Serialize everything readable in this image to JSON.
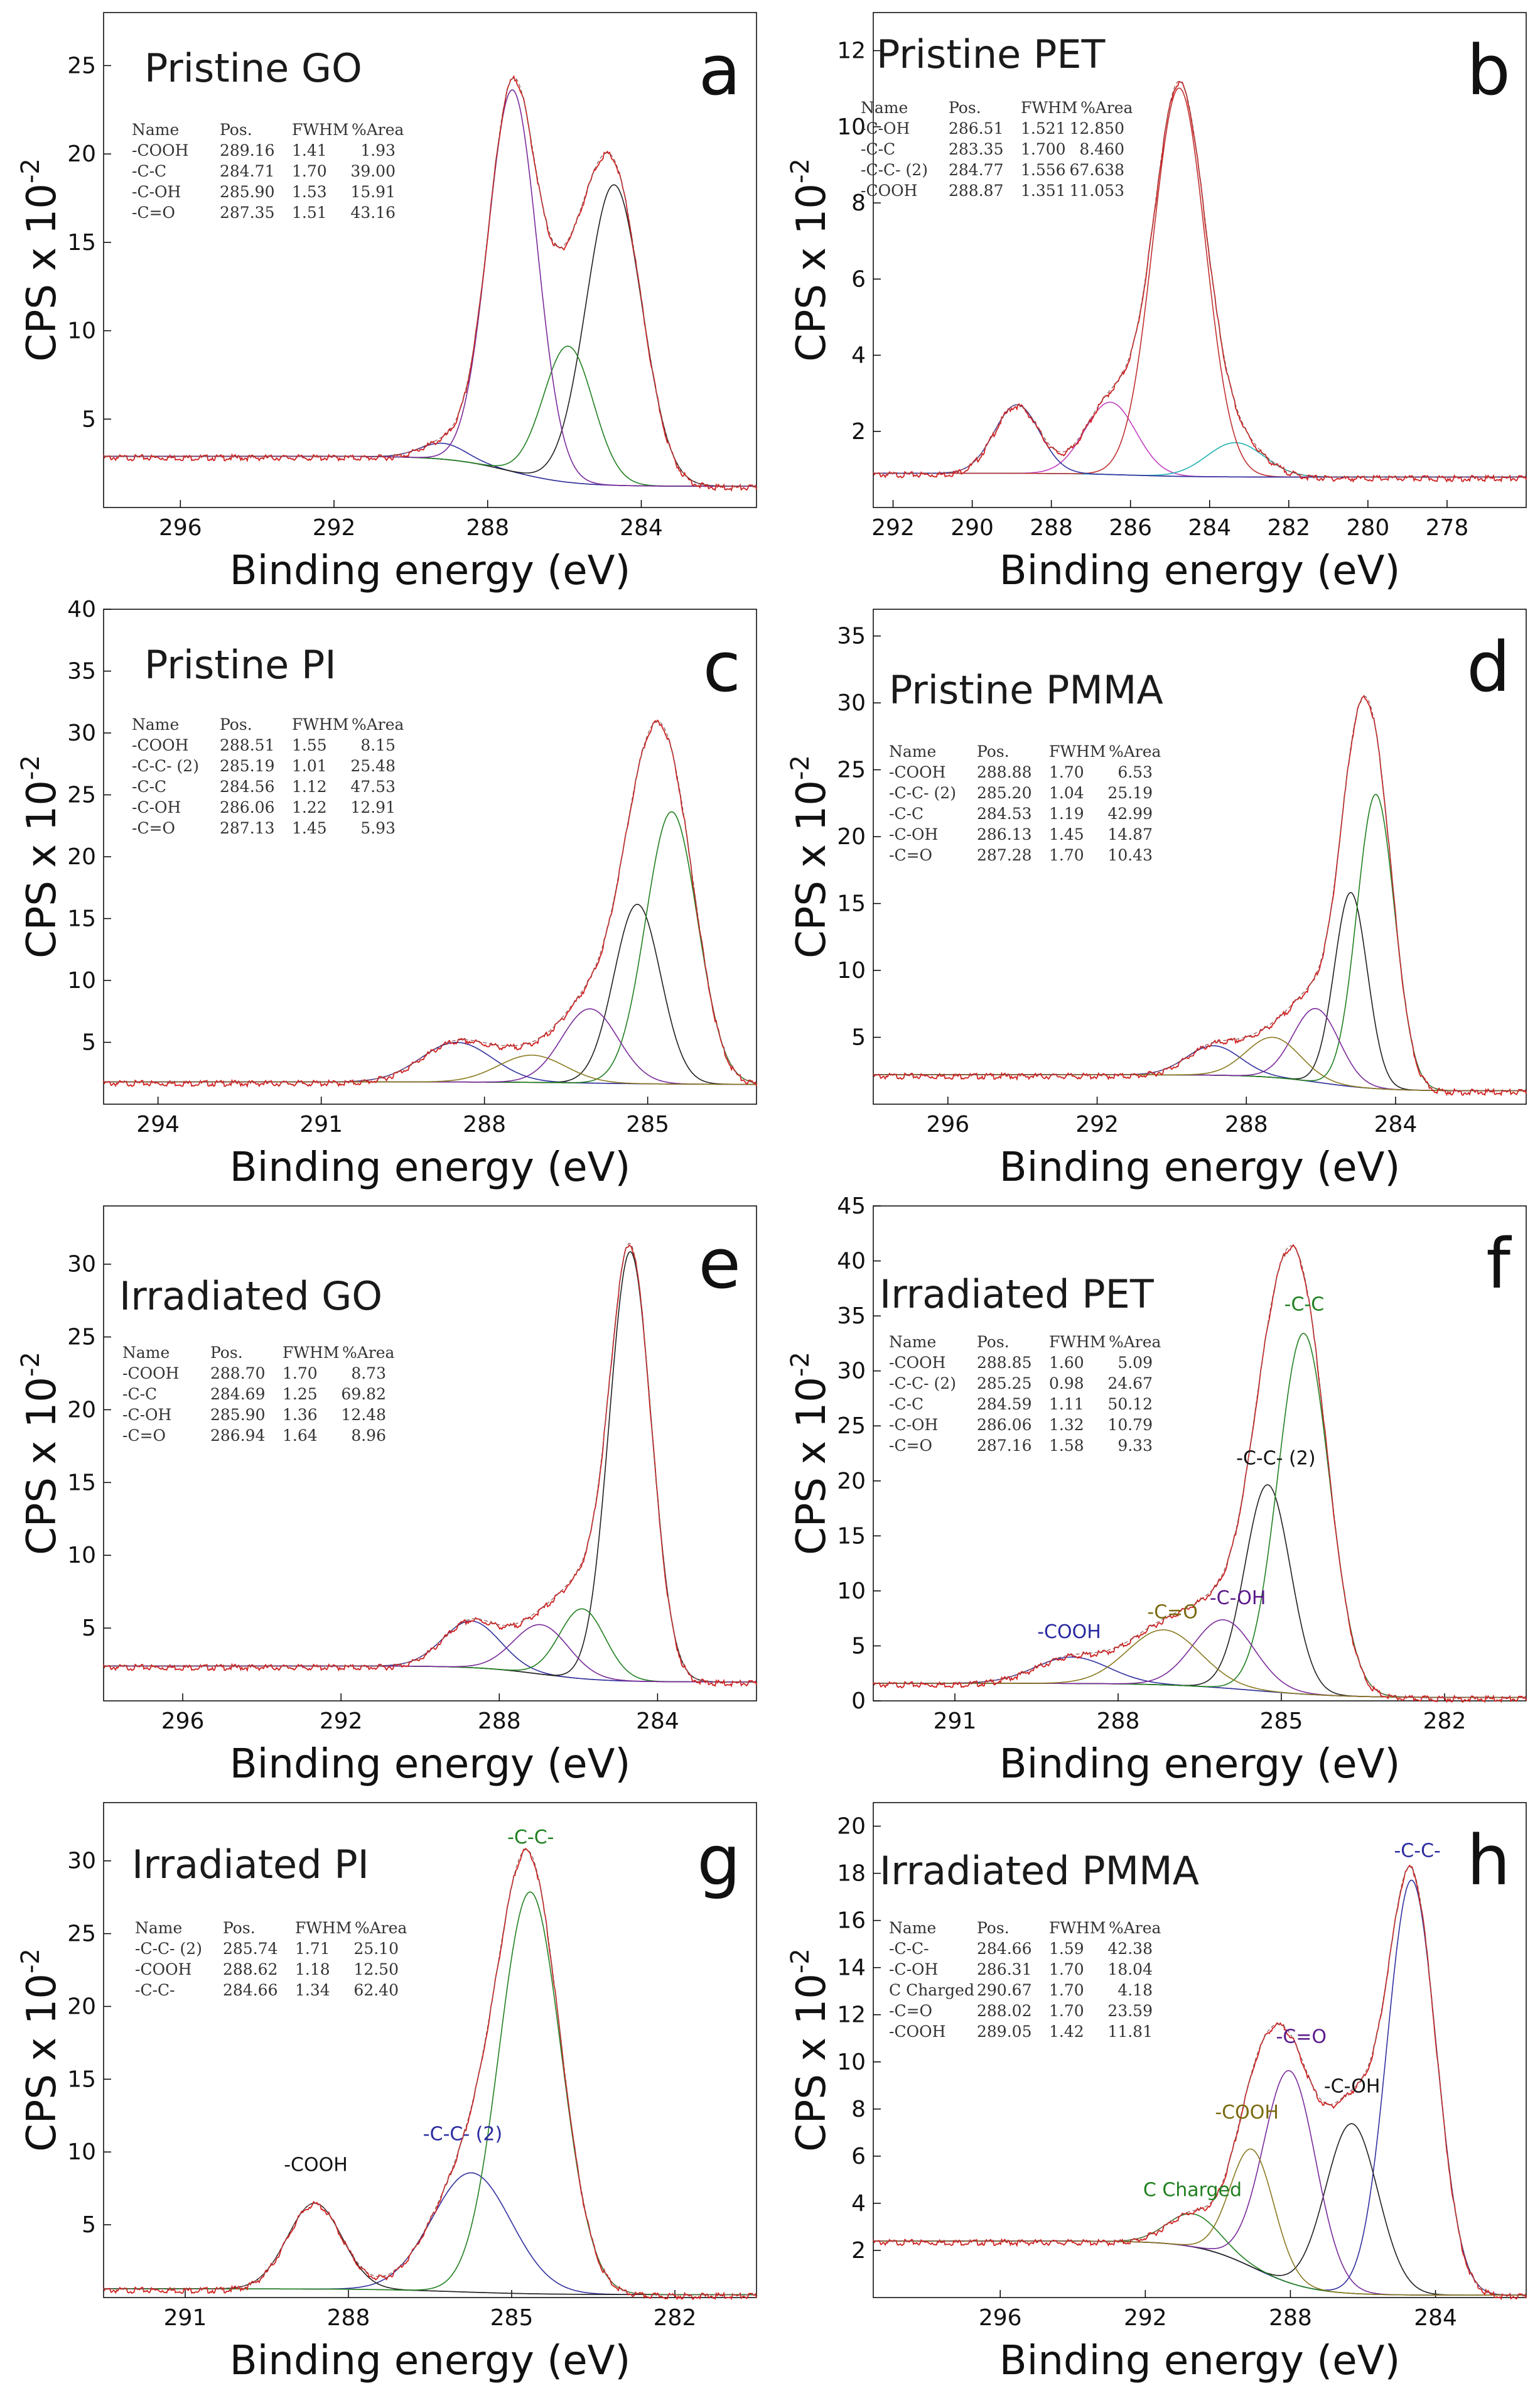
{
  "y_axis_label": "CPS x 10",
  "y_axis_exponent": "-2",
  "table_headers": [
    "Name",
    "Pos.",
    "FWHM",
    "%Area"
  ],
  "chart_data": [
    {
      "id": "a",
      "type": "line",
      "letter": "a",
      "title": "Pristine GO",
      "xlabel": "Binding energy (eV)",
      "xlim": [
        298,
        281
      ],
      "xticks": [
        296,
        292,
        288,
        284
      ],
      "ylim": [
        0,
        28
      ],
      "yticks": [
        5,
        10,
        15,
        20,
        25
      ],
      "baseline": {
        "left": 2.9,
        "right": 1.2,
        "step_center": 287.4
      },
      "components": [
        {
          "name": "-COOH",
          "pos": "289.16",
          "fwhm": "1.41",
          "area": "1.93",
          "center": 289.16,
          "width": 1.41,
          "height": 0.9,
          "color": "#3030a0"
        },
        {
          "name": "-C-C",
          "pos": "284.71",
          "fwhm": "1.70",
          "area": "39.00",
          "center": 284.71,
          "width": 1.7,
          "height": 17.0,
          "color": "#202020"
        },
        {
          "name": "-C-OH",
          "pos": "285.90",
          "fwhm": "1.53",
          "area": "15.91",
          "center": 285.9,
          "width": 1.53,
          "height": 7.7,
          "color": "#208020"
        },
        {
          "name": "-C=O",
          "pos": "287.35",
          "fwhm": "1.51",
          "area": "43.16",
          "center": 287.35,
          "width": 1.51,
          "height": 21.6,
          "color": "#7a2a9a"
        }
      ],
      "annotations": []
    },
    {
      "id": "b",
      "type": "line",
      "letter": "b",
      "title": "Pristine PET",
      "xlabel": "Binding energy (eV)",
      "xlim": [
        292.5,
        276
      ],
      "xticks": [
        292,
        290,
        288,
        286,
        284,
        282,
        280,
        278
      ],
      "ylim": [
        0,
        13
      ],
      "yticks": [
        2,
        4,
        6,
        8,
        10,
        12
      ],
      "baseline": {
        "left": 0.9,
        "right": 0.8,
        "step_center": 286
      },
      "components": [
        {
          "name": "-C-OH",
          "pos": "286.51",
          "fwhm": "1.521",
          "area": "12.850",
          "center": 286.51,
          "width": 1.521,
          "height": 1.9,
          "color": "#c040c0"
        },
        {
          "name": "-C-C",
          "pos": "283.35",
          "fwhm": "1.700",
          "area": "8.460",
          "center": 283.35,
          "width": 1.7,
          "height": 0.9,
          "color": "#20b0b0"
        },
        {
          "name": "-C-C- (2)",
          "pos": "284.77",
          "fwhm": "1.556",
          "area": "67.638",
          "center": 284.77,
          "width": 1.556,
          "height": 10.2,
          "color": "#c03030"
        },
        {
          "name": "-COOH",
          "pos": "288.87",
          "fwhm": "1.351",
          "area": "11.053",
          "center": 288.87,
          "width": 1.351,
          "height": 1.8,
          "color": "#3030a0"
        }
      ],
      "annotations": []
    },
    {
      "id": "c",
      "type": "line",
      "letter": "c",
      "title": "Pristine PI",
      "xlabel": "Binding energy (eV)",
      "xlim": [
        295,
        283
      ],
      "xticks": [
        294,
        291,
        288,
        285
      ],
      "ylim": [
        0,
        40
      ],
      "yticks": [
        5,
        10,
        15,
        20,
        25,
        30,
        35,
        40
      ],
      "baseline": {
        "left": 1.8,
        "right": 1.6,
        "step_center": 286
      },
      "components": [
        {
          "name": "-COOH",
          "pos": "288.51",
          "fwhm": "1.55",
          "area": "8.15",
          "center": 288.51,
          "width": 1.55,
          "height": 3.2,
          "color": "#3030a0"
        },
        {
          "name": "-C-C- (2)",
          "pos": "285.19",
          "fwhm": "1.01",
          "area": "25.48",
          "center": 285.19,
          "width": 1.01,
          "height": 14.5,
          "color": "#202020"
        },
        {
          "name": "-C-C",
          "pos": "284.56",
          "fwhm": "1.12",
          "area": "47.53",
          "center": 284.56,
          "width": 1.12,
          "height": 22.0,
          "color": "#208020"
        },
        {
          "name": "-C-OH",
          "pos": "286.06",
          "fwhm": "1.22",
          "area": "12.91",
          "center": 286.06,
          "width": 1.22,
          "height": 6.0,
          "color": "#7a2a9a"
        },
        {
          "name": "-C=O",
          "pos": "287.13",
          "fwhm": "1.45",
          "area": "5.93",
          "center": 287.13,
          "width": 1.45,
          "height": 2.2,
          "color": "#8a7a20"
        }
      ],
      "annotations": []
    },
    {
      "id": "d",
      "type": "line",
      "letter": "d",
      "title": "Pristine PMMA",
      "xlabel": "Binding energy (eV)",
      "xlim": [
        298,
        280.5
      ],
      "xticks": [
        296,
        292,
        288,
        284
      ],
      "ylim": [
        0,
        37
      ],
      "yticks": [
        5,
        10,
        15,
        20,
        25,
        30,
        35
      ],
      "baseline": {
        "left": 2.2,
        "right": 1.0,
        "step_center": 286
      },
      "components": [
        {
          "name": "-COOH",
          "pos": "288.88",
          "fwhm": "1.70",
          "area": "6.53",
          "center": 288.88,
          "width": 1.7,
          "height": 2.2,
          "color": "#3030a0"
        },
        {
          "name": "-C-C- (2)",
          "pos": "285.20",
          "fwhm": "1.04",
          "area": "25.19",
          "center": 285.2,
          "width": 1.04,
          "height": 14.5,
          "color": "#202020"
        },
        {
          "name": "-C-C",
          "pos": "284.53",
          "fwhm": "1.19",
          "area": "42.99",
          "center": 284.53,
          "width": 1.19,
          "height": 22.0,
          "color": "#208020"
        },
        {
          "name": "-C-OH",
          "pos": "286.13",
          "fwhm": "1.45",
          "area": "14.87",
          "center": 286.13,
          "width": 1.45,
          "height": 5.5,
          "color": "#7a2a9a"
        },
        {
          "name": "-C=O",
          "pos": "287.28",
          "fwhm": "1.70",
          "area": "10.43",
          "center": 287.28,
          "width": 1.7,
          "height": 3.0,
          "color": "#8a7a20"
        }
      ],
      "annotations": []
    },
    {
      "id": "e",
      "type": "line",
      "letter": "e",
      "title": "Irradiated GO",
      "xlabel": "Binding energy (eV)",
      "xlim": [
        298,
        281.5
      ],
      "xticks": [
        296,
        292,
        288,
        284
      ],
      "ylim": [
        0,
        34
      ],
      "yticks": [
        5,
        10,
        15,
        20,
        25,
        30
      ],
      "baseline": {
        "left": 2.4,
        "right": 1.3,
        "step_center": 287
      },
      "components": [
        {
          "name": "-COOH",
          "pos": "288.70",
          "fwhm": "1.70",
          "area": "8.73",
          "center": 288.7,
          "width": 1.7,
          "height": 3.2,
          "color": "#3030a0"
        },
        {
          "name": "-C-C",
          "pos": "284.69",
          "fwhm": "1.25",
          "area": "69.82",
          "center": 284.69,
          "width": 1.25,
          "height": 29.5,
          "color": "#202020"
        },
        {
          "name": "-C-OH",
          "pos": "285.90",
          "fwhm": "1.36",
          "area": "12.48",
          "center": 285.9,
          "width": 1.36,
          "height": 4.8,
          "color": "#208020"
        },
        {
          "name": "-C=O",
          "pos": "286.94",
          "fwhm": "1.64",
          "area": "8.96",
          "center": 286.94,
          "width": 1.64,
          "height": 3.4,
          "color": "#7a2a9a"
        }
      ],
      "annotations": []
    },
    {
      "id": "f",
      "type": "line",
      "letter": "f",
      "title": "Irradiated PET",
      "xlabel": "Binding energy (eV)",
      "xlim": [
        292.5,
        280.5
      ],
      "xticks": [
        291,
        288,
        285,
        282
      ],
      "ylim": [
        0,
        45
      ],
      "yticks": [
        0,
        5,
        10,
        15,
        20,
        25,
        30,
        35,
        40,
        45
      ],
      "baseline": {
        "left": 1.6,
        "right": 0.3,
        "step_center": 285.5
      },
      "components": [
        {
          "name": "-COOH",
          "pos": "288.85",
          "fwhm": "1.60",
          "area": "5.09",
          "center": 288.85,
          "width": 1.6,
          "height": 2.4,
          "color": "#3030a0"
        },
        {
          "name": "-C-C- (2)",
          "pos": "285.25",
          "fwhm": "0.98",
          "area": "24.67",
          "center": 285.25,
          "width": 0.98,
          "height": 18.8,
          "color": "#202020"
        },
        {
          "name": "-C-C",
          "pos": "284.59",
          "fwhm": "1.11",
          "area": "50.12",
          "center": 284.59,
          "width": 1.11,
          "height": 32.8,
          "color": "#208020"
        },
        {
          "name": "-C-OH",
          "pos": "286.06",
          "fwhm": "1.32",
          "area": "10.79",
          "center": 286.06,
          "width": 1.32,
          "height": 6.2,
          "color": "#7a2a9a"
        },
        {
          "name": "-C=O",
          "pos": "287.16",
          "fwhm": "1.58",
          "area": "9.33",
          "center": 287.16,
          "width": 1.58,
          "height": 5.0,
          "color": "#8a7a20"
        }
      ],
      "annotations": [
        {
          "text": "-C-C",
          "x": 284.58,
          "y": 35.5,
          "color": "#208020"
        },
        {
          "text": "-C-C- (2)",
          "x": 285.1,
          "y": 21.5,
          "color": "#111111"
        },
        {
          "text": "-C-OH",
          "x": 285.8,
          "y": 8.8,
          "color": "#5a1a8a"
        },
        {
          "text": "-C=O",
          "x": 287.0,
          "y": 7.5,
          "color": "#7a6a10"
        },
        {
          "text": "-COOH",
          "x": 288.9,
          "y": 5.7,
          "color": "#2a2aa0"
        }
      ]
    },
    {
      "id": "g",
      "type": "line",
      "letter": "g",
      "title": "Irradiated PI",
      "xlabel": "Binding energy (eV)",
      "xlim": [
        292.5,
        280.5
      ],
      "xticks": [
        291,
        288,
        285,
        282
      ],
      "ylim": [
        0,
        34
      ],
      "yticks": [
        5,
        10,
        15,
        20,
        25,
        30
      ],
      "baseline": {
        "left": 0.6,
        "right": 0.2,
        "step_center": 286
      },
      "components": [
        {
          "name": "-C-C- (2)",
          "pos": "285.74",
          "fwhm": "1.71",
          "area": "25.10",
          "center": 285.74,
          "width": 1.71,
          "height": 8.2,
          "color": "#3030a0"
        },
        {
          "name": "-COOH",
          "pos": "288.62",
          "fwhm": "1.18",
          "area": "12.50",
          "center": 288.62,
          "width": 1.18,
          "height": 5.9,
          "color": "#202020"
        },
        {
          "name": "-C-C-",
          "pos": "284.66",
          "fwhm": "1.34",
          "area": "62.40",
          "center": 284.66,
          "width": 1.34,
          "height": 27.6,
          "color": "#208020"
        }
      ],
      "annotations": [
        {
          "text": "-C-C-",
          "x": 284.65,
          "y": 31.2,
          "color": "#208020"
        },
        {
          "text": "-C-C- (2)",
          "x": 285.9,
          "y": 10.8,
          "color": "#2a2aa0"
        },
        {
          "text": "-COOH",
          "x": 288.6,
          "y": 8.7,
          "color": "#111111"
        }
      ]
    },
    {
      "id": "h",
      "type": "line",
      "letter": "h",
      "title": "Irradiated PMMA",
      "xlabel": "Binding energy (eV)",
      "xlim": [
        299.5,
        281.5
      ],
      "xticks": [
        296,
        292,
        288,
        284
      ],
      "ylim": [
        0,
        21
      ],
      "yticks": [
        2,
        4,
        6,
        8,
        10,
        12,
        14,
        16,
        18,
        20
      ],
      "baseline": {
        "left": 2.4,
        "right": 0.1,
        "step_center": 289
      },
      "components": [
        {
          "name": "-C-C-",
          "pos": "284.66",
          "fwhm": "1.59",
          "area": "42.38",
          "center": 284.66,
          "width": 1.59,
          "height": 17.6,
          "color": "#3030a0"
        },
        {
          "name": "-C-OH",
          "pos": "286.31",
          "fwhm": "1.70",
          "area": "18.04",
          "center": 286.31,
          "width": 1.7,
          "height": 7.2,
          "color": "#202020"
        },
        {
          "name": "C  Charged",
          "pos": "290.67",
          "fwhm": "1.70",
          "area": "4.18",
          "center": 290.67,
          "width": 1.7,
          "height": 1.4,
          "color": "#208020"
        },
        {
          "name": "-C=O",
          "pos": "288.02",
          "fwhm": "1.70",
          "area": "23.59",
          "center": 288.02,
          "width": 1.7,
          "height": 9.0,
          "color": "#7a2a9a"
        },
        {
          "name": "-COOH",
          "pos": "289.05",
          "fwhm": "1.42",
          "area": "11.81",
          "center": 289.05,
          "width": 1.42,
          "height": 5.0,
          "color": "#8a7a20"
        }
      ],
      "annotations": [
        {
          "text": "-C-C-",
          "x": 284.5,
          "y": 18.7,
          "color": "#2a2aa0"
        },
        {
          "text": "-C=O",
          "x": 287.7,
          "y": 10.8,
          "color": "#5a1a8a"
        },
        {
          "text": "-C-OH",
          "x": 286.3,
          "y": 8.7,
          "color": "#111111"
        },
        {
          "text": "-COOH",
          "x": 289.2,
          "y": 7.6,
          "color": "#7a6a10"
        },
        {
          "text": "C  Charged",
          "x": 290.7,
          "y": 4.3,
          "color": "#208020"
        }
      ]
    }
  ]
}
